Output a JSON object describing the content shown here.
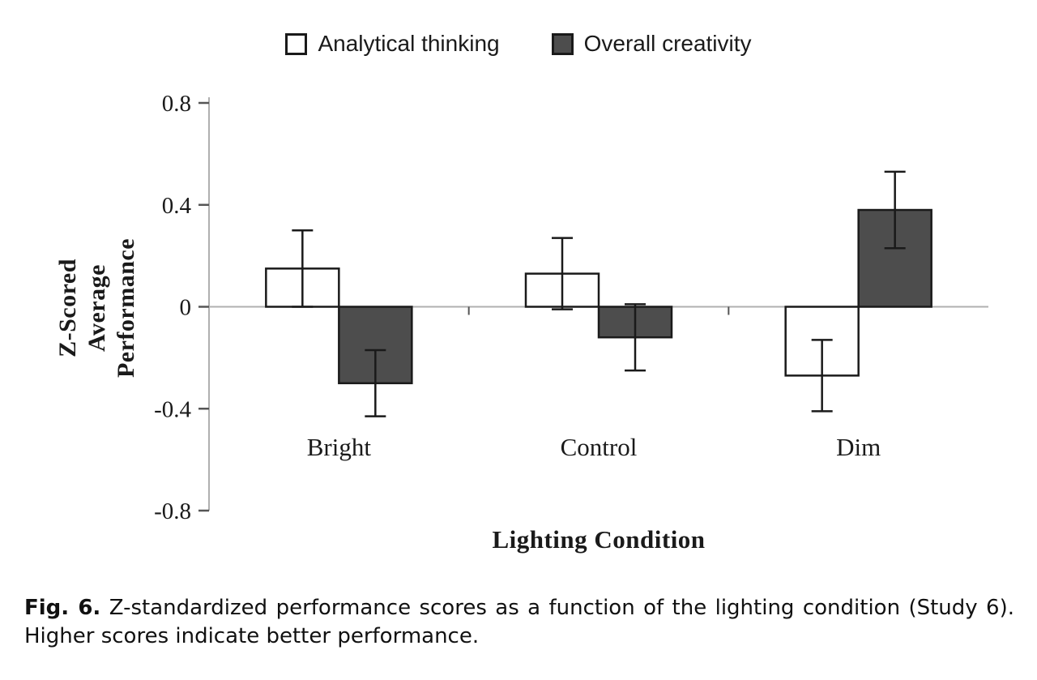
{
  "chart_data": {
    "type": "bar",
    "categories": [
      "Bright",
      "Control",
      "Dim"
    ],
    "series": [
      {
        "name": "Analytical thinking",
        "color": "#ffffff",
        "values": [
          0.15,
          0.13,
          -0.27
        ],
        "errors": [
          0.15,
          0.14,
          0.14
        ]
      },
      {
        "name": "Overall creativity",
        "color": "#4d4d4d",
        "values": [
          -0.3,
          -0.12,
          0.38
        ],
        "errors": [
          0.13,
          0.13,
          0.15
        ]
      }
    ],
    "title": "",
    "xlabel": "Lighting Condition",
    "ylabel": "Z-Scored Average Performance",
    "ylim": [
      -0.8,
      0.8
    ],
    "yticks": [
      0.8,
      0.4,
      0,
      -0.4,
      -0.8
    ],
    "grid": false,
    "legend_position": "top",
    "bar_border_color": "#1a1a1a",
    "axis_color": "#b0b0b0",
    "tick_color": "#555555"
  },
  "caption": {
    "label": "Fig. 6.",
    "text": "Z-standardized performance scores as a function of the lighting condition (Study 6). Higher scores indicate better performance."
  }
}
